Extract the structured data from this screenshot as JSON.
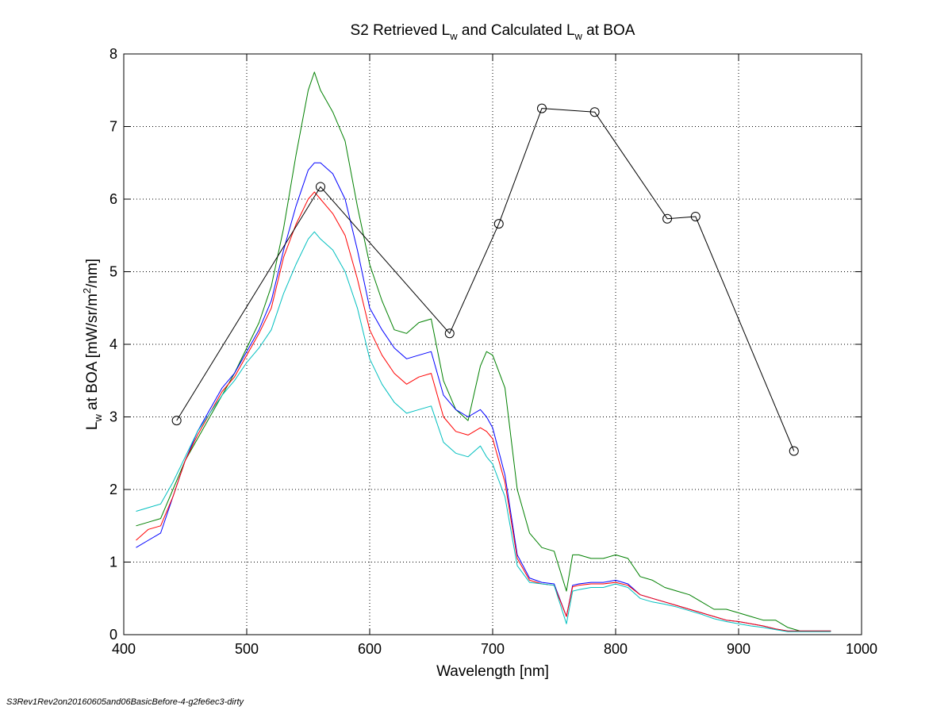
{
  "chart_data": {
    "type": "line",
    "title": {
      "prefix": "S2 Retrieved L",
      "sub1": "w",
      "middle": " and Calculated L",
      "sub2": "w",
      "suffix": " at BOA"
    },
    "xlabel": "Wavelength [nm]",
    "ylabel": {
      "prefix": "L",
      "sub": "w",
      "middle": " at BOA [mW/sr/m",
      "sup": "2",
      "suffix": "/nm]"
    },
    "xlim": [
      400,
      1000
    ],
    "ylim": [
      0,
      8
    ],
    "x_ticks": [
      400,
      500,
      600,
      700,
      800,
      900,
      1000
    ],
    "y_ticks": [
      0,
      1,
      2,
      3,
      4,
      5,
      6,
      7,
      8
    ],
    "grid": true,
    "colors": {
      "green": "#008000",
      "blue": "#0000ff",
      "red": "#ff0000",
      "cyan": "#00bfbf",
      "retrieved": "#000000"
    },
    "series": [
      {
        "color_key": "green",
        "x": [
          410,
          420,
          430,
          440,
          450,
          460,
          470,
          480,
          490,
          500,
          510,
          520,
          530,
          540,
          550,
          555,
          560,
          570,
          580,
          590,
          600,
          610,
          620,
          630,
          640,
          650,
          660,
          670,
          680,
          690,
          695,
          700,
          710,
          720,
          730,
          740,
          750,
          760,
          765,
          770,
          780,
          790,
          800,
          810,
          820,
          830,
          840,
          850,
          860,
          870,
          880,
          890,
          900,
          910,
          920,
          930,
          940,
          950,
          960,
          975
        ],
        "y": [
          1.5,
          1.55,
          1.6,
          2.0,
          2.4,
          2.7,
          3.0,
          3.3,
          3.6,
          3.95,
          4.3,
          4.8,
          5.6,
          6.6,
          7.5,
          7.75,
          7.5,
          7.2,
          6.8,
          5.9,
          5.1,
          4.6,
          4.2,
          4.15,
          4.3,
          4.35,
          3.5,
          3.1,
          2.95,
          3.7,
          3.9,
          3.85,
          3.4,
          2.0,
          1.4,
          1.2,
          1.15,
          0.6,
          1.1,
          1.1,
          1.05,
          1.05,
          1.1,
          1.05,
          0.8,
          0.75,
          0.65,
          0.6,
          0.55,
          0.45,
          0.35,
          0.35,
          0.3,
          0.25,
          0.2,
          0.2,
          0.1,
          0.05,
          0.05,
          0.05
        ]
      },
      {
        "color_key": "blue",
        "x": [
          410,
          420,
          430,
          440,
          450,
          460,
          470,
          480,
          490,
          500,
          510,
          520,
          530,
          540,
          550,
          555,
          560,
          570,
          580,
          590,
          600,
          610,
          620,
          630,
          640,
          650,
          660,
          670,
          680,
          690,
          695,
          700,
          710,
          720,
          730,
          740,
          750,
          760,
          765,
          770,
          780,
          790,
          800,
          810,
          820,
          830,
          840,
          850,
          860,
          870,
          880,
          890,
          900,
          910,
          920,
          930,
          940,
          950,
          960,
          975
        ],
        "y": [
          1.2,
          1.3,
          1.4,
          1.9,
          2.4,
          2.8,
          3.1,
          3.4,
          3.6,
          3.9,
          4.2,
          4.6,
          5.3,
          5.9,
          6.4,
          6.5,
          6.5,
          6.35,
          6.0,
          5.3,
          4.5,
          4.2,
          3.95,
          3.8,
          3.85,
          3.9,
          3.3,
          3.1,
          3.0,
          3.1,
          3.0,
          2.85,
          2.2,
          1.1,
          0.78,
          0.72,
          0.7,
          0.25,
          0.68,
          0.7,
          0.72,
          0.72,
          0.75,
          0.7,
          0.55,
          0.5,
          0.45,
          0.4,
          0.35,
          0.3,
          0.25,
          0.2,
          0.18,
          0.15,
          0.12,
          0.08,
          0.05,
          0.05,
          0.05,
          0.05
        ]
      },
      {
        "color_key": "red",
        "x": [
          410,
          420,
          430,
          440,
          450,
          460,
          470,
          480,
          490,
          500,
          510,
          520,
          530,
          540,
          550,
          555,
          560,
          570,
          580,
          590,
          600,
          610,
          620,
          630,
          640,
          650,
          660,
          670,
          680,
          690,
          695,
          700,
          710,
          720,
          730,
          740,
          750,
          760,
          765,
          770,
          780,
          790,
          800,
          810,
          820,
          830,
          840,
          850,
          860,
          870,
          880,
          890,
          900,
          910,
          920,
          930,
          940,
          950,
          960,
          975
        ],
        "y": [
          1.3,
          1.45,
          1.5,
          1.9,
          2.4,
          2.75,
          3.05,
          3.35,
          3.55,
          3.85,
          4.15,
          4.5,
          5.2,
          5.65,
          6.0,
          6.1,
          6.0,
          5.8,
          5.5,
          4.9,
          4.2,
          3.85,
          3.6,
          3.45,
          3.55,
          3.6,
          3.0,
          2.8,
          2.75,
          2.85,
          2.8,
          2.7,
          2.1,
          1.05,
          0.75,
          0.7,
          0.68,
          0.25,
          0.66,
          0.68,
          0.7,
          0.7,
          0.72,
          0.68,
          0.55,
          0.5,
          0.45,
          0.4,
          0.35,
          0.3,
          0.25,
          0.2,
          0.18,
          0.15,
          0.12,
          0.08,
          0.05,
          0.05,
          0.05,
          0.05
        ]
      },
      {
        "color_key": "cyan",
        "x": [
          410,
          420,
          430,
          440,
          450,
          460,
          470,
          480,
          490,
          500,
          510,
          520,
          530,
          540,
          550,
          555,
          560,
          570,
          580,
          590,
          600,
          610,
          620,
          630,
          640,
          650,
          660,
          670,
          680,
          690,
          695,
          700,
          710,
          720,
          730,
          740,
          750,
          760,
          765,
          770,
          780,
          790,
          800,
          810,
          820,
          830,
          840,
          850,
          860,
          870,
          880,
          890,
          900,
          910,
          920,
          930,
          940,
          950,
          960,
          975
        ],
        "y": [
          1.7,
          1.75,
          1.8,
          2.1,
          2.45,
          2.8,
          3.05,
          3.3,
          3.5,
          3.75,
          3.95,
          4.2,
          4.7,
          5.1,
          5.45,
          5.55,
          5.45,
          5.3,
          5.0,
          4.5,
          3.8,
          3.45,
          3.2,
          3.05,
          3.1,
          3.15,
          2.65,
          2.5,
          2.45,
          2.6,
          2.45,
          2.35,
          1.9,
          0.95,
          0.72,
          0.7,
          0.68,
          0.15,
          0.6,
          0.62,
          0.65,
          0.65,
          0.7,
          0.65,
          0.5,
          0.45,
          0.42,
          0.38,
          0.33,
          0.28,
          0.22,
          0.18,
          0.15,
          0.12,
          0.1,
          0.07,
          0.04,
          0.04,
          0.04,
          0.04
        ]
      },
      {
        "color_key": "retrieved",
        "markers": true,
        "x": [
          443,
          560,
          665,
          705,
          740,
          783,
          842,
          865,
          945
        ],
        "y": [
          2.95,
          6.17,
          4.15,
          5.66,
          7.25,
          7.2,
          5.73,
          5.76,
          2.53
        ]
      }
    ]
  },
  "footer": "S3Rev1Rev2on20160605and06BasicBefore-4-g2fe6ec3-dirty"
}
